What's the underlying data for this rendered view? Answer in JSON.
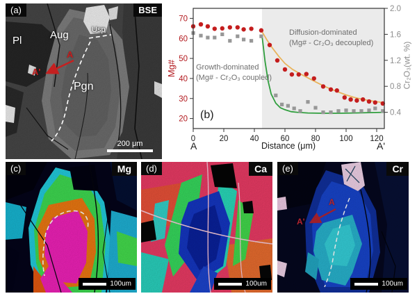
{
  "figure": {
    "panel_a": {
      "tag": "(a)",
      "technique": "BSE",
      "labels": {
        "pl": "Pl",
        "aug": "Aug",
        "usp": "Usp",
        "pgn": "Pgn",
        "a": "A",
        "a_prime": "A'"
      },
      "scale_bar": "200 μm"
    },
    "panel_c": {
      "tag": "(c)",
      "element": "Mg",
      "scale_bar": "100um"
    },
    "panel_d": {
      "tag": "(d)",
      "element": "Ca",
      "scale_bar": "100um"
    },
    "panel_e": {
      "tag": "(e)",
      "element": "Cr",
      "labels": {
        "a": "A",
        "a_prime": "A'"
      },
      "scale_bar": "100um"
    }
  },
  "chart_data": {
    "type": "scatter",
    "panel_tag": "(b)",
    "xlabel": "Distance (μm)",
    "ylabel_left": "Mg#",
    "ylabel_right": "Cr₂O₃(wt. %)",
    "endpoint_labels": {
      "left": "A",
      "right": "A'"
    },
    "xlim": [
      0,
      125
    ],
    "xticks": [
      0,
      20,
      40,
      60,
      80,
      100,
      120
    ],
    "ylim_left": [
      15,
      75
    ],
    "yticks_left": [
      20,
      30,
      40,
      50,
      60,
      70
    ],
    "ylim_right": [
      0.15,
      2.0
    ],
    "yticks_right": [
      "0.4",
      "0.8",
      "1.2",
      "1.6",
      "2.0"
    ],
    "grid": false,
    "legend": false,
    "shaded_region": {
      "x0": 45,
      "x1": 125,
      "color": "#ebebeb"
    },
    "colors": {
      "x_tick": "#1a1a1a",
      "left_tick": "#b2191e",
      "right_tick": "#8c8c8c",
      "frame": "#333333"
    },
    "annotations": [
      {
        "line1": "Growth-dominated",
        "line2": "(Mg# - Cr₂O₃ coupled)"
      },
      {
        "line1": "Diffusion-dominated",
        "line2": "(Mg# - Cr₂O₃ decoupled)"
      }
    ],
    "series": [
      {
        "name": "Mg# fit",
        "type": "line",
        "axis": "left",
        "color": "#e9b45c",
        "x": [
          44.5,
          48,
          52,
          56,
          60,
          65,
          70,
          75,
          80,
          85,
          90,
          95,
          100,
          105,
          110,
          115,
          120,
          125
        ],
        "y": [
          64,
          59.5,
          55,
          51,
          47.5,
          44.5,
          42.3,
          40.3,
          38.3,
          36.4,
          34.7,
          33.2,
          31.8,
          30.6,
          29.7,
          29,
          28.4,
          27.9
        ]
      },
      {
        "name": "Cr2O3 fit",
        "type": "line",
        "axis": "right",
        "color": "#2f9e3d",
        "x": [
          45,
          47,
          49,
          51,
          54,
          57,
          60,
          64,
          68,
          75,
          85,
          95,
          105,
          115,
          125
        ],
        "y": [
          1.58,
          1.18,
          0.88,
          0.68,
          0.54,
          0.47,
          0.44,
          0.41,
          0.4,
          0.39,
          0.385,
          0.385,
          0.39,
          0.395,
          0.4
        ]
      },
      {
        "name": "Mg#",
        "type": "scatter",
        "marker": "circle",
        "axis": "left",
        "color": "#c41d1d",
        "x": [
          0,
          5,
          9.5,
          14,
          19,
          24,
          29,
          33,
          38,
          44.5,
          50,
          55,
          60,
          64.5,
          69,
          74,
          79,
          85,
          90,
          94,
          99,
          103,
          107,
          111,
          115,
          119,
          124
        ],
        "y": [
          66,
          67,
          66,
          64.8,
          65,
          65.5,
          65.5,
          64.5,
          64.8,
          64,
          56.7,
          49,
          44.5,
          42,
          42,
          42.2,
          40,
          36,
          34.5,
          34,
          30.5,
          29.5,
          29,
          29.5,
          28.5,
          28,
          27.5
        ]
      },
      {
        "name": "Cr2O3",
        "type": "scatter",
        "marker": "square",
        "axis": "right",
        "color": "#979797",
        "x": [
          0,
          5,
          9.5,
          14,
          19,
          24,
          29,
          33,
          38,
          44.5,
          54,
          58,
          62,
          66,
          70,
          75,
          80,
          85,
          90,
          95,
          100,
          105,
          110,
          115,
          119,
          124
        ],
        "y": [
          1.62,
          1.58,
          1.55,
          1.55,
          1.6,
          1.5,
          1.57,
          1.52,
          1.5,
          1.57,
          0.66,
          0.52,
          0.5,
          0.46,
          0.42,
          0.56,
          0.47,
          0.4,
          0.4,
          0.42,
          0.43,
          0.42,
          0.42,
          0.43,
          0.46,
          0.42
        ]
      }
    ]
  }
}
